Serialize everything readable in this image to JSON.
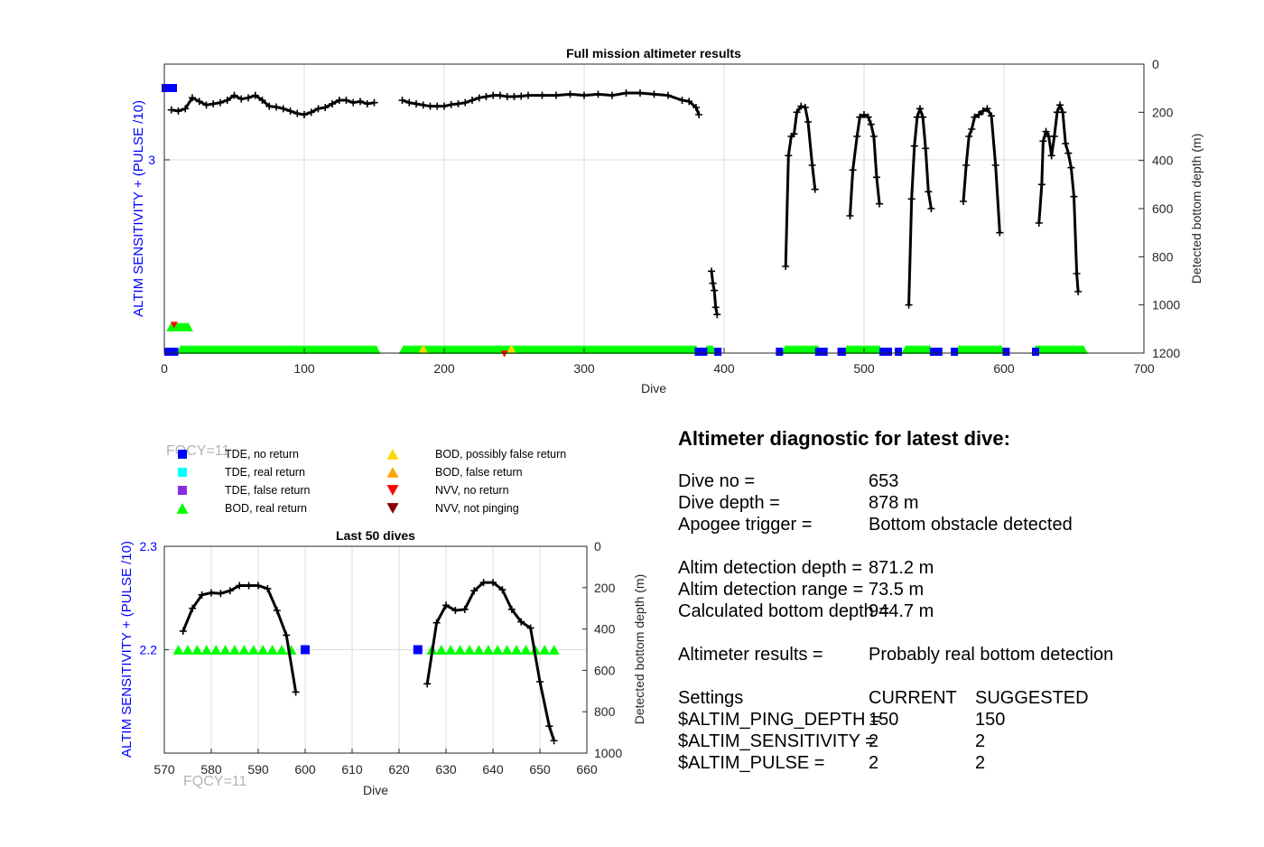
{
  "colors": {
    "tde_no_return": "#0000ff",
    "tde_real_return": "#00ffff",
    "tde_false_return": "#8a2be2",
    "bod_real_return": "#00ff00",
    "bod_possibly_false": "#ffd700",
    "bod_false": "#ffa500",
    "nvv_no_return": "#ff0000",
    "nvv_not_pinging": "#8b0000",
    "depth": "#000000",
    "sens_axis": "#0000ff"
  },
  "legend": {
    "items": [
      {
        "label": "TDE, no return",
        "marker": "square",
        "color": "#0000ff"
      },
      {
        "label": "TDE, real return",
        "marker": "square",
        "color": "#00ffff"
      },
      {
        "label": "TDE, false return",
        "marker": "square",
        "color": "#8a2be2"
      },
      {
        "label": "BOD, real return",
        "marker": "triangle-up",
        "color": "#00ff00"
      },
      {
        "label": "BOD, possibly false return",
        "marker": "triangle-up",
        "color": "#ffd700"
      },
      {
        "label": "BOD, false return",
        "marker": "triangle-up",
        "color": "#ffa500"
      },
      {
        "label": "NVV, no return",
        "marker": "triangle-down",
        "color": "#ff0000"
      },
      {
        "label": "NVV, not pinging",
        "marker": "triangle-down",
        "color": "#8b0000"
      }
    ]
  },
  "fqcy_label": "FQCY=11",
  "chart_data": [
    {
      "type": "scatter",
      "title": "Full mission altimeter results",
      "xlabel": "Dive",
      "ylabel_left": "ALTIM SENSITIVITY + (PULSE /10)",
      "ylabel_right": "Detected bottom depth (m)",
      "xlim": [
        0,
        700
      ],
      "ylim_right": [
        0,
        1200
      ],
      "x_ticks": [
        "0",
        "100",
        "200",
        "300",
        "400",
        "500",
        "600",
        "700"
      ],
      "y_right_ticks": [
        "0",
        "200",
        "400",
        "600",
        "800",
        "1000",
        "1200"
      ],
      "y_left_ticks": [
        "3"
      ],
      "grid": true,
      "depth_series": [
        {
          "x": [
            5,
            10,
            15,
            20,
            25,
            30,
            35,
            40,
            45,
            50,
            55,
            60,
            65,
            70,
            75,
            80,
            85,
            90,
            95,
            100,
            105,
            110,
            115,
            120,
            125,
            130,
            135,
            140,
            145,
            150
          ],
          "y": [
            190,
            195,
            185,
            140,
            155,
            170,
            165,
            160,
            150,
            130,
            145,
            140,
            130,
            150,
            175,
            178,
            185,
            195,
            205,
            210,
            200,
            185,
            180,
            165,
            150,
            150,
            160,
            155,
            165,
            160
          ]
        },
        {
          "x": [
            170,
            175,
            180,
            185,
            190,
            195,
            200,
            205,
            210,
            215,
            220,
            225,
            230,
            235,
            240,
            245,
            250,
            255,
            260,
            270,
            280,
            290,
            300,
            310,
            320,
            330,
            340,
            350,
            360,
            370,
            375,
            380,
            382
          ],
          "y": [
            150,
            160,
            165,
            170,
            175,
            175,
            175,
            168,
            165,
            160,
            150,
            140,
            135,
            130,
            130,
            135,
            135,
            133,
            130,
            130,
            130,
            125,
            130,
            125,
            130,
            120,
            120,
            125,
            130,
            150,
            155,
            180,
            210
          ]
        },
        {
          "x": [
            391,
            392,
            393,
            394,
            395
          ],
          "y": [
            860,
            910,
            940,
            1010,
            1040
          ]
        },
        {
          "x": [
            444,
            446,
            448,
            450,
            452,
            455,
            458,
            460,
            463,
            465
          ],
          "y": [
            840,
            380,
            300,
            290,
            200,
            175,
            180,
            240,
            420,
            520
          ]
        },
        {
          "x": [
            490,
            492,
            495,
            497,
            500,
            503,
            505,
            507,
            509,
            511
          ],
          "y": [
            630,
            440,
            300,
            220,
            210,
            220,
            250,
            300,
            470,
            580
          ]
        },
        {
          "x": [
            532,
            534,
            536,
            538,
            540,
            542,
            544,
            546,
            548
          ],
          "y": [
            1000,
            560,
            340,
            220,
            185,
            220,
            350,
            530,
            600
          ]
        },
        {
          "x": [
            571,
            573,
            575,
            577,
            579,
            582,
            585,
            588,
            591,
            594,
            597
          ],
          "y": [
            570,
            420,
            300,
            270,
            220,
            210,
            195,
            185,
            215,
            420,
            700
          ]
        },
        {
          "x": [
            625,
            627,
            628,
            630,
            632,
            634,
            636,
            638,
            640,
            642,
            644,
            646,
            648,
            650,
            652,
            653
          ],
          "y": [
            660,
            500,
            320,
            280,
            300,
            380,
            300,
            200,
            170,
            200,
            330,
            370,
            430,
            550,
            870,
            945
          ]
        }
      ],
      "bod_real_segments": [
        [
          12,
          152
        ],
        [
          171,
          380
        ],
        [
          388,
          392
        ],
        [
          444,
          467
        ],
        [
          488,
          511
        ],
        [
          530,
          548
        ],
        [
          568,
          599
        ],
        [
          623,
          657
        ]
      ],
      "bod_real_at_sens": [
        5,
        18
      ],
      "tde_no_return_segments": [
        [
          0,
          10
        ],
        [
          379,
          388
        ],
        [
          393,
          398
        ],
        [
          437,
          442
        ],
        [
          465,
          474
        ],
        [
          481,
          487
        ],
        [
          511,
          520
        ],
        [
          522,
          527
        ],
        [
          547,
          556
        ],
        [
          562,
          566
        ],
        [
          599,
          604
        ],
        [
          620,
          624
        ]
      ],
      "nvv_no_return": [
        {
          "x": 7,
          "y_level": "top"
        },
        {
          "x": 243,
          "y_level": "low"
        }
      ],
      "bod_possibly_false": [
        {
          "x": 185
        },
        {
          "x": 248
        }
      ]
    },
    {
      "type": "scatter",
      "title": "Last 50 dives",
      "xlabel": "Dive",
      "ylabel_left": "ALTIM SENSITIVITY + (PULSE /10)",
      "ylabel_right": "Detected bottom depth (m)",
      "xlim": [
        570,
        660
      ],
      "ylim_left": [
        2.1,
        2.3
      ],
      "ylim_right": [
        0,
        1000
      ],
      "x_ticks": [
        "570",
        "580",
        "590",
        "600",
        "610",
        "620",
        "630",
        "640",
        "650",
        "660"
      ],
      "y_left_ticks": [
        "2.3",
        "2.2"
      ],
      "y_right_ticks": [
        "0",
        "200",
        "400",
        "600",
        "800",
        "1000"
      ],
      "grid": true,
      "depth_series": [
        {
          "x": [
            574,
            576,
            578,
            580,
            582,
            584,
            586,
            588,
            590,
            592,
            594,
            596,
            598
          ],
          "y": [
            410,
            300,
            235,
            225,
            228,
            215,
            190,
            190,
            190,
            205,
            310,
            430,
            705
          ]
        },
        {
          "x": [
            626,
            628,
            630,
            632,
            634,
            636,
            638,
            640,
            642,
            644,
            646,
            648,
            650,
            652,
            653
          ],
          "y": [
            665,
            370,
            285,
            310,
            305,
            215,
            175,
            175,
            210,
            305,
            365,
            395,
            655,
            870,
            940
          ]
        }
      ],
      "bod_real_x": [
        573,
        575,
        577,
        579,
        581,
        583,
        585,
        587,
        589,
        591,
        593,
        595,
        597,
        627,
        629,
        631,
        633,
        635,
        637,
        639,
        641,
        643,
        645,
        647,
        649,
        651,
        653
      ],
      "bod_real_y": 2.2,
      "tde_no_return_x": [
        600,
        624
      ]
    }
  ],
  "diagnostic": {
    "title": "Altimeter diagnostic for latest dive:",
    "rows": [
      {
        "label": "Dive no =",
        "value": "653"
      },
      {
        "label": "Dive depth =",
        "value": "878 m"
      },
      {
        "label": "Apogee trigger =",
        "value": "Bottom obstacle detected"
      },
      {
        "label": "Altim detection depth =",
        "value": "871.2 m"
      },
      {
        "label": "Altim detection range =",
        "value": "73.5 m"
      },
      {
        "label": "Calculated bottom depth =",
        "value": "944.7 m"
      },
      {
        "label": "Altimeter results =",
        "value": "Probably real bottom detection"
      }
    ],
    "settings": {
      "header": {
        "label": "Settings",
        "current": "CURRENT",
        "suggested": "SUGGESTED"
      },
      "rows": [
        {
          "label": "$ALTIM_PING_DEPTH =",
          "current": "150",
          "suggested": "150"
        },
        {
          "label": "$ALTIM_SENSITIVITY =",
          "current": "2",
          "suggested": "2"
        },
        {
          "label": "$ALTIM_PULSE =",
          "current": "2",
          "suggested": "2"
        }
      ]
    }
  }
}
